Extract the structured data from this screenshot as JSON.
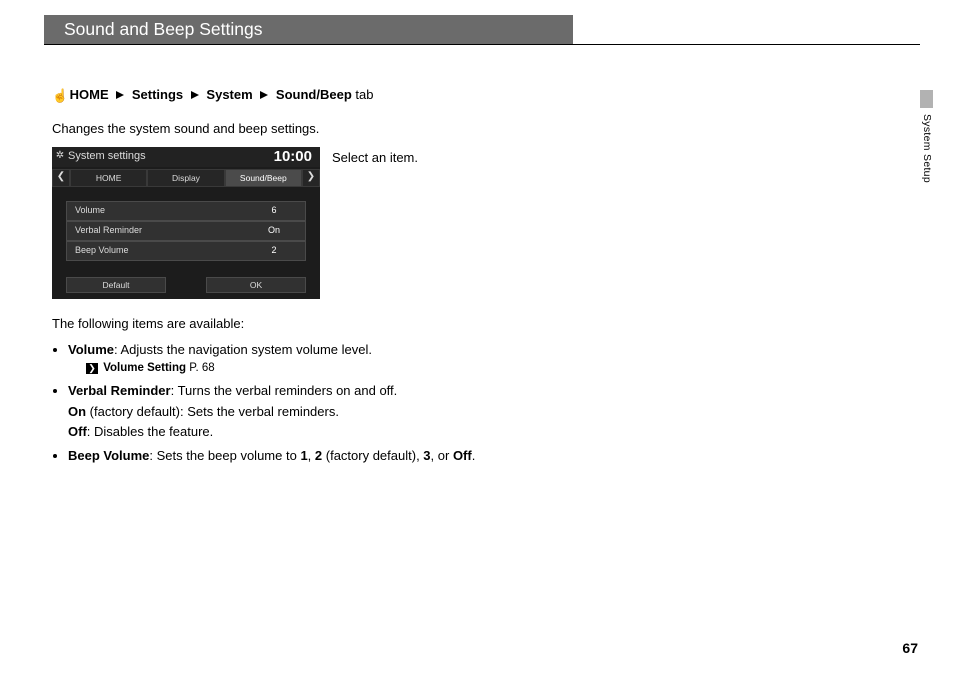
{
  "page": {
    "title": "Sound and Beep Settings",
    "section_label": "System Setup",
    "page_number": "67"
  },
  "breadcrumb": {
    "icon": "☝",
    "items": [
      "HOME",
      "Settings",
      "System",
      "Sound/Beep"
    ],
    "suffix": " tab"
  },
  "body": {
    "intro": "Changes the system sound and beep settings.",
    "instruction": "Select an item.",
    "available_heading": "The following items are available:"
  },
  "screenshot": {
    "header": {
      "title": "System settings",
      "clock": "10:00",
      "gear": "✲"
    },
    "tabs": {
      "prev": "❮",
      "next": "❯",
      "items": [
        "HOME",
        "Display",
        "Sound/Beep"
      ],
      "active_index": 2
    },
    "rows": [
      {
        "label": "Volume",
        "value": "6"
      },
      {
        "label": "Verbal Reminder",
        "value": "On"
      },
      {
        "label": "Beep Volume",
        "value": "2"
      }
    ],
    "buttons": {
      "left": "Default",
      "right": "OK"
    },
    "colors": {
      "bg": "#1c1c1c",
      "row_bg": "#313131",
      "row_border": "#4a4a4a",
      "tab_bg": "#262626",
      "tab_active": "#4b4b4b",
      "text": "#dcdcdc"
    }
  },
  "items": {
    "volume": {
      "name": "Volume",
      "desc": ": Adjusts the navigation system volume level.",
      "xref_label": "Volume Setting",
      "xref_page": " P. 68"
    },
    "verbal": {
      "name": "Verbal Reminder",
      "desc": ": Turns the verbal reminders on and off.",
      "on_label": "On",
      "on_desc": " (factory default): Sets the verbal reminders.",
      "off_label": "Off",
      "off_desc": ": Disables the feature."
    },
    "beep": {
      "name": "Beep Volume",
      "desc_1": ": Sets the beep volume to ",
      "v1": "1",
      "s1": ", ",
      "v2": "2",
      "s2": " (factory default), ",
      "v3": "3",
      "s3": ", or ",
      "v4": "Off",
      "s4": "."
    }
  }
}
